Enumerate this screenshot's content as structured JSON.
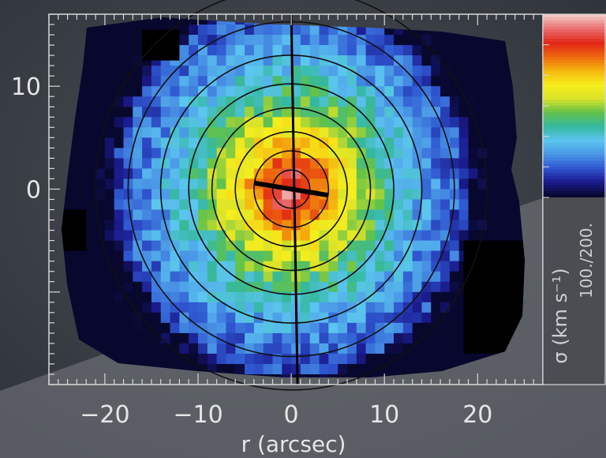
{
  "chart_data": {
    "type": "heatmap",
    "title": "",
    "xlabel": "r (arcsec)",
    "ylabel": "",
    "xlim": [
      -26,
      27
    ],
    "ylim": [
      -19,
      17
    ],
    "x_ticks": [
      -20,
      -10,
      0,
      10,
      20
    ],
    "x_tick_labels": [
      "−20",
      "−10",
      "0",
      "10",
      "20"
    ],
    "y_ticks": [
      10,
      0
    ],
    "y_tick_labels": [
      "10",
      "0"
    ],
    "quantity": "velocity dispersion map",
    "colorbar": {
      "label": "σ (km s⁻¹)",
      "range_label": "100./200.",
      "range": [
        100,
        200
      ],
      "colors": [
        "#08082e",
        "#1a1a8c",
        "#2f56d0",
        "#4a97e6",
        "#5cc6ef",
        "#34b8a0",
        "#62c24a",
        "#d9e22a",
        "#f7ee1c",
        "#f5b80e",
        "#ee6a0e",
        "#e22616",
        "#e86a6a",
        "#f2c6c2"
      ]
    },
    "center": {
      "x": 0,
      "y": 0,
      "peak_sigma": 200
    },
    "isophotes_semi_major_axes": [
      2,
      4,
      6,
      8.5,
      11,
      14,
      17.5,
      21
    ],
    "major_axis_line": {
      "x": [
        -4,
        4
      ],
      "y": [
        0.6,
        -0.6
      ]
    },
    "slit_line_x": 0
  }
}
